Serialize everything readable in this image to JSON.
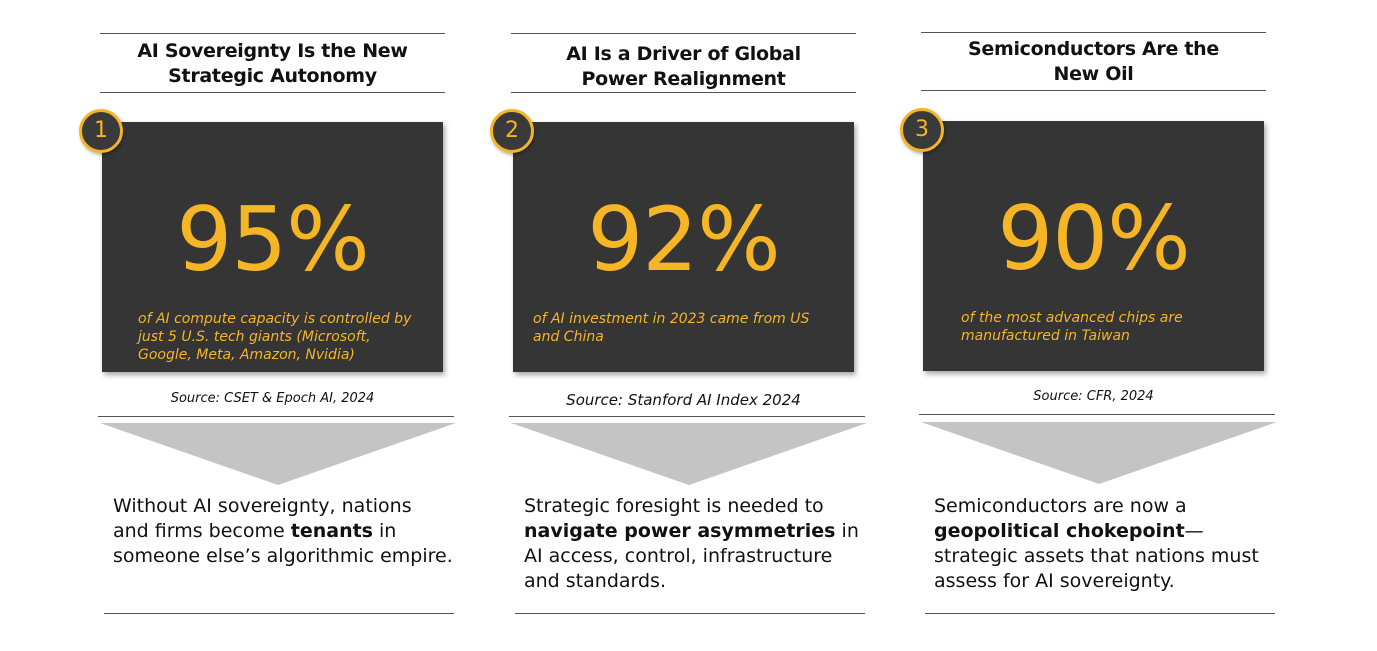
{
  "colors": {
    "accent": "#f5b525",
    "card": "#353535",
    "arrow": "#c4c4c4",
    "text": "#111111"
  },
  "columns": [
    {
      "number": "1",
      "title_line1": "AI Sovereignty Is the New",
      "title_line2": "Strategic Autonomy",
      "stat": "95%",
      "description": "of AI compute capacity is controlled by just 5 U.S. tech giants (Microsoft, Google, Meta, Amazon, Nvidia)",
      "source": "Source: CSET & Epoch AI, 2024",
      "body_before": "Without AI sovereignty, nations and firms become ",
      "body_bold": "tenants",
      "body_after": " in someone else’s algorithmic empire."
    },
    {
      "number": "2",
      "title_line1": "AI Is a Driver of Global",
      "title_line2": "Power Realignment",
      "stat": "92%",
      "description": "of AI investment in 2023 came from US and China",
      "source": "Source: Stanford AI Index 2024",
      "body_before": "Strategic foresight is needed to ",
      "body_bold": "navigate power asymmetries",
      "body_after": " in AI access, control, infrastructure and standards."
    },
    {
      "number": "3",
      "title_line1": "Semiconductors Are the",
      "title_line2": "New Oil",
      "stat": "90%",
      "description": "of the most advanced chips are manufactured in Taiwan",
      "source": "Source: CFR, 2024",
      "body_before": "Semiconductors are now a ",
      "body_bold": "geopolitical chokepoint",
      "body_after": "—strategic assets that nations must assess for AI sovereignty."
    }
  ]
}
